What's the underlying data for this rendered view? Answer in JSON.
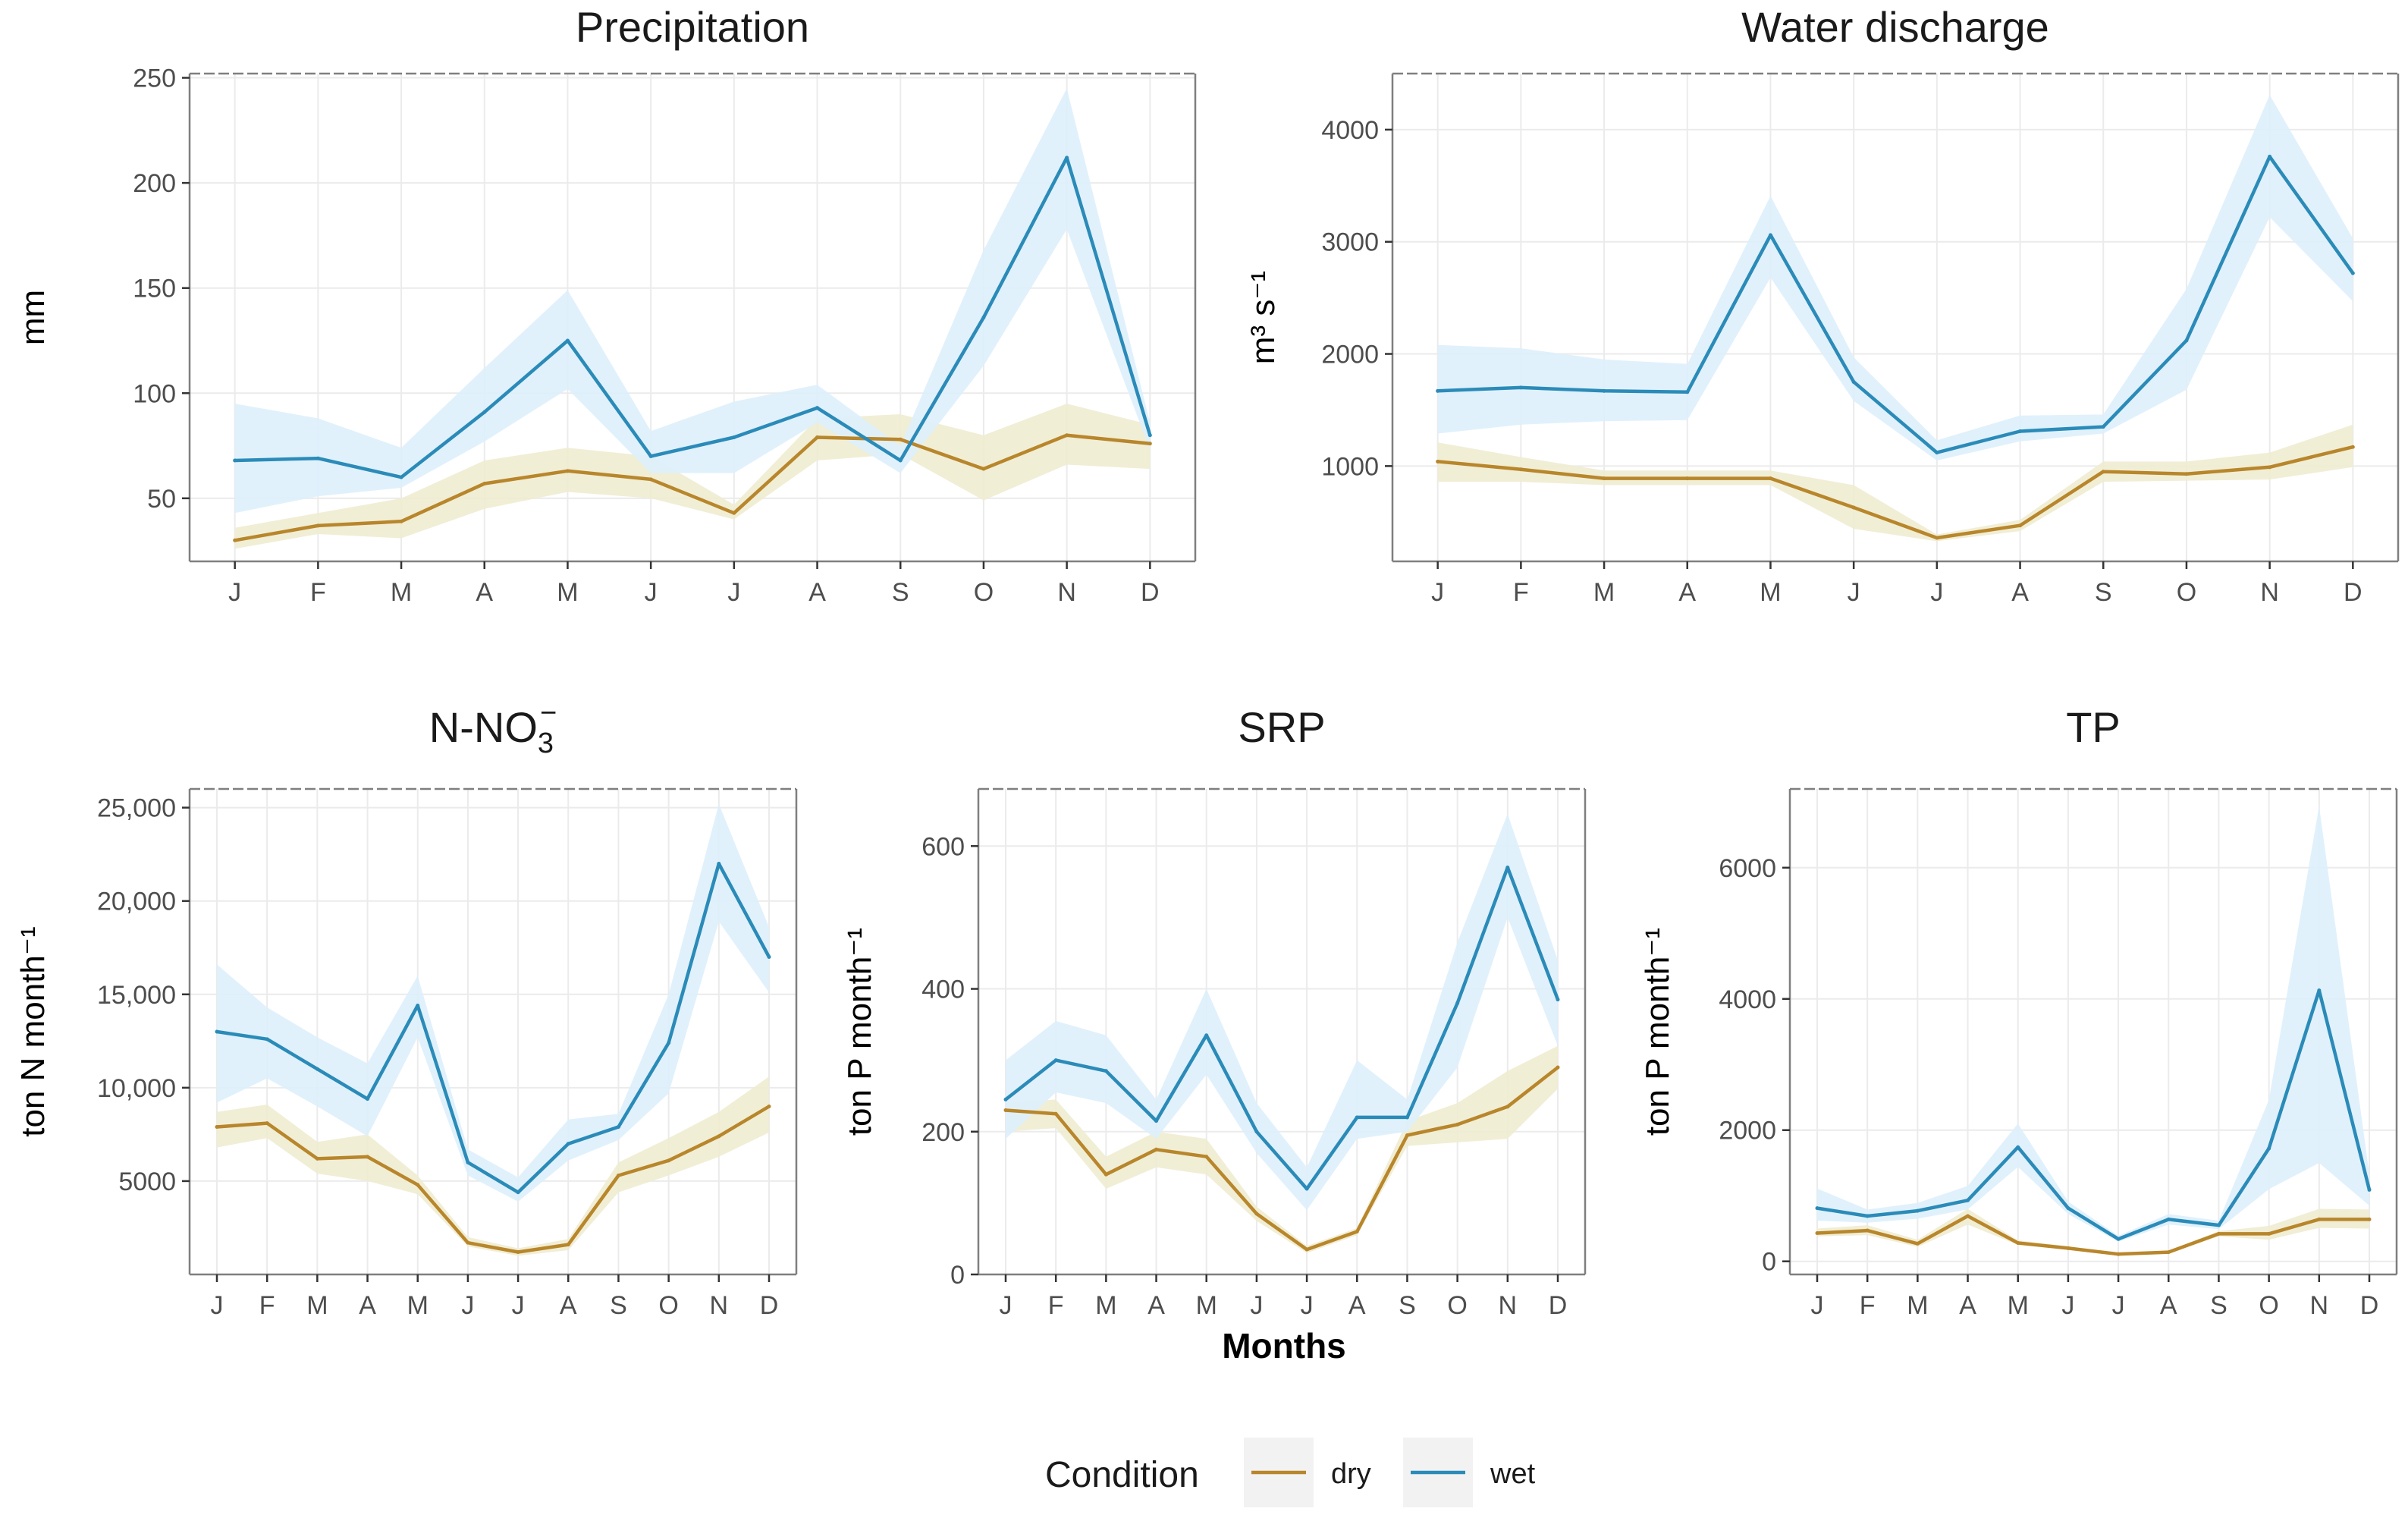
{
  "colors": {
    "dry": "#b8862b",
    "wet": "#2b8bb8",
    "dry_band": "#efecd2",
    "wet_band": "#ddf0fc"
  },
  "months": [
    "J",
    "F",
    "M",
    "A",
    "M",
    "J",
    "J",
    "A",
    "S",
    "O",
    "N",
    "D"
  ],
  "x_axis_title": "Months",
  "legend": {
    "title": "Condition",
    "items": [
      {
        "key": "dry",
        "label": "dry"
      },
      {
        "key": "wet",
        "label": "wet"
      }
    ]
  },
  "chart_data": [
    {
      "id": "precipitation",
      "type": "line",
      "title": "Precipitation",
      "ylabel": "mm",
      "ylim": [
        20,
        252
      ],
      "yticks": [
        {
          "v": 50,
          "label": "50"
        },
        {
          "v": 100,
          "label": "100"
        },
        {
          "v": 150,
          "label": "150"
        },
        {
          "v": 200,
          "label": "200"
        },
        {
          "v": 250,
          "label": "250"
        }
      ],
      "series": [
        {
          "name": "dry",
          "values": [
            30,
            37,
            39,
            57,
            63,
            59,
            43,
            79,
            78,
            64,
            80,
            76
          ],
          "lower": [
            26,
            33,
            31,
            45,
            53,
            50,
            40,
            68,
            71,
            49,
            66,
            64
          ],
          "upper": [
            36,
            43,
            50,
            68,
            74,
            70,
            47,
            88,
            90,
            80,
            95,
            85
          ]
        },
        {
          "name": "wet",
          "values": [
            68,
            69,
            60,
            91,
            125,
            70,
            79,
            93,
            68,
            136,
            212,
            80
          ],
          "lower": [
            43,
            51,
            55,
            77,
            102,
            62,
            62,
            86,
            62,
            113,
            178,
            73
          ],
          "upper": [
            95,
            88,
            74,
            112,
            149,
            82,
            96,
            104,
            75,
            168,
            245,
            86
          ]
        }
      ]
    },
    {
      "id": "water-discharge",
      "type": "line",
      "title": "Water discharge",
      "ylabel": "m³ s⁻¹",
      "ylim": [
        150,
        4500
      ],
      "yticks": [
        {
          "v": 1000,
          "label": "1000"
        },
        {
          "v": 2000,
          "label": "2000"
        },
        {
          "v": 3000,
          "label": "3000"
        },
        {
          "v": 4000,
          "label": "4000"
        }
      ],
      "series": [
        {
          "name": "dry",
          "values": [
            1040,
            970,
            890,
            890,
            890,
            630,
            360,
            470,
            950,
            930,
            990,
            1170
          ],
          "lower": [
            860,
            860,
            830,
            830,
            830,
            440,
            330,
            420,
            860,
            870,
            880,
            990
          ],
          "upper": [
            1210,
            1080,
            960,
            960,
            960,
            830,
            390,
            520,
            1040,
            1040,
            1120,
            1370
          ]
        },
        {
          "name": "wet",
          "values": [
            1670,
            1700,
            1670,
            1660,
            3060,
            1750,
            1120,
            1310,
            1350,
            2120,
            3760,
            2720
          ],
          "lower": [
            1290,
            1370,
            1400,
            1410,
            2680,
            1580,
            1050,
            1220,
            1290,
            1680,
            3220,
            2470
          ],
          "upper": [
            2080,
            2050,
            1950,
            1910,
            3410,
            1970,
            1230,
            1450,
            1460,
            2580,
            4310,
            3030
          ]
        }
      ]
    },
    {
      "id": "nitrate",
      "type": "line",
      "title": "N-NO3⁻",
      "title_main": "N-NO",
      "title_sub": "3",
      "title_sup": "−",
      "ylabel": "ton N month⁻¹",
      "ylim": [
        0,
        26000
      ],
      "yticks": [
        {
          "v": 5000,
          "label": "5000"
        },
        {
          "v": 10000,
          "label": "10,000"
        },
        {
          "v": 15000,
          "label": "15,000"
        },
        {
          "v": 20000,
          "label": "20,000"
        },
        {
          "v": 25000,
          "label": "25,000"
        }
      ],
      "series": [
        {
          "name": "dry",
          "values": [
            7900,
            8100,
            6200,
            6300,
            4800,
            1700,
            1200,
            1600,
            5300,
            6100,
            7400,
            9000
          ],
          "lower": [
            6800,
            7300,
            5400,
            5000,
            4300,
            1500,
            1000,
            1300,
            4400,
            5300,
            6300,
            7600
          ],
          "upper": [
            8700,
            9100,
            7100,
            7500,
            5300,
            2000,
            1400,
            1900,
            6000,
            7300,
            8700,
            10600
          ]
        },
        {
          "name": "wet",
          "values": [
            13000,
            12600,
            11000,
            9400,
            14400,
            6000,
            4400,
            7000,
            7900,
            12400,
            22000,
            17000
          ],
          "lower": [
            9200,
            10500,
            9000,
            7400,
            12700,
            5300,
            3900,
            6100,
            7200,
            9700,
            18900,
            15100
          ],
          "upper": [
            16600,
            14300,
            12700,
            11300,
            16000,
            6700,
            5200,
            8300,
            8600,
            15000,
            25200,
            18600
          ]
        }
      ]
    },
    {
      "id": "srp",
      "type": "line",
      "title": "SRP",
      "ylabel": "ton P month⁻¹",
      "ylim": [
        0,
        680
      ],
      "yticks": [
        {
          "v": 0,
          "label": "0"
        },
        {
          "v": 200,
          "label": "200"
        },
        {
          "v": 400,
          "label": "400"
        },
        {
          "v": 600,
          "label": "600"
        }
      ],
      "series": [
        {
          "name": "dry",
          "values": [
            230,
            225,
            140,
            175,
            165,
            85,
            35,
            60,
            195,
            210,
            235,
            290
          ],
          "lower": [
            200,
            205,
            120,
            150,
            140,
            75,
            30,
            55,
            180,
            185,
            190,
            260
          ],
          "upper": [
            240,
            245,
            165,
            200,
            190,
            95,
            40,
            65,
            215,
            240,
            285,
            320
          ]
        },
        {
          "name": "wet",
          "values": [
            245,
            300,
            285,
            215,
            335,
            200,
            120,
            220,
            220,
            380,
            570,
            385
          ],
          "lower": [
            190,
            255,
            240,
            190,
            280,
            170,
            90,
            190,
            200,
            290,
            500,
            320
          ],
          "upper": [
            300,
            355,
            335,
            245,
            400,
            240,
            150,
            300,
            245,
            465,
            645,
            440
          ]
        }
      ]
    },
    {
      "id": "tp",
      "type": "line",
      "title": "TP",
      "ylabel": "ton P month⁻¹",
      "ylim": [
        -200,
        7200
      ],
      "yticks": [
        {
          "v": 0,
          "label": "0"
        },
        {
          "v": 2000,
          "label": "2000"
        },
        {
          "v": 4000,
          "label": "4000"
        },
        {
          "v": 6000,
          "label": "6000"
        }
      ],
      "series": [
        {
          "name": "dry",
          "values": [
            430,
            470,
            270,
            690,
            280,
            200,
            110,
            140,
            420,
            420,
            640,
            640
          ],
          "lower": [
            380,
            400,
            220,
            560,
            250,
            180,
            100,
            120,
            380,
            330,
            510,
            500
          ],
          "upper": [
            500,
            550,
            330,
            800,
            320,
            230,
            120,
            160,
            460,
            540,
            800,
            790
          ]
        },
        {
          "name": "wet",
          "values": [
            810,
            690,
            770,
            930,
            1740,
            810,
            340,
            640,
            550,
            1720,
            4130,
            1090
          ],
          "lower": [
            620,
            590,
            650,
            790,
            1440,
            720,
            300,
            560,
            490,
            1100,
            1500,
            850
          ],
          "upper": [
            1110,
            790,
            890,
            1150,
            2100,
            910,
            390,
            720,
            620,
            2460,
            6940,
            1330
          ]
        }
      ]
    }
  ]
}
